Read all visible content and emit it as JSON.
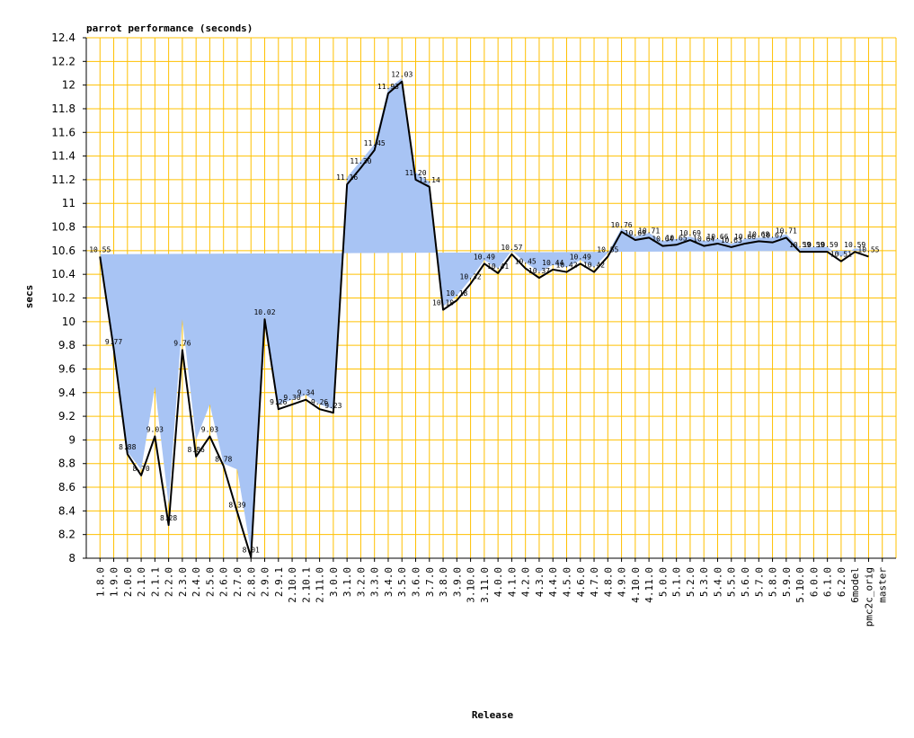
{
  "chart_data": {
    "type": "line",
    "title": "parrot performance (seconds)",
    "xlabel": "Release",
    "ylabel": "secs",
    "ylim": [
      8,
      12.4
    ],
    "yticks": [
      "8",
      "8.2",
      "8.4",
      "8.6",
      "8.8",
      "9",
      "9.2",
      "9.4",
      "9.6",
      "9.8",
      "10",
      "10.2",
      "10.4",
      "10.6",
      "10.8",
      "11",
      "11.2",
      "11.4",
      "11.6",
      "11.8",
      "12",
      "12.2",
      "12.4"
    ],
    "grid": true,
    "colors": {
      "grid": "#ffc000",
      "line": "#000000",
      "band": "#a8c4f4"
    },
    "categories": [
      "1.8.0",
      "1.9.0",
      "2.0.0",
      "2.1.0",
      "2.1.1",
      "2.2.0",
      "2.3.0",
      "2.4.0",
      "2.5.0",
      "2.6.0",
      "2.7.0",
      "2.8.0",
      "2.9.0",
      "2.9.1",
      "2.10.0",
      "2.10.1",
      "2.11.0",
      "3.0.0",
      "3.1.0",
      "3.2.0",
      "3.3.0",
      "3.4.0",
      "3.5.0",
      "3.6.0",
      "3.7.0",
      "3.8.0",
      "3.9.0",
      "3.10.0",
      "3.11.0",
      "4.0.0",
      "4.1.0",
      "4.2.0",
      "4.3.0",
      "4.4.0",
      "4.5.0",
      "4.6.0",
      "4.7.0",
      "4.8.0",
      "4.9.0",
      "4.10.0",
      "4.11.0",
      "5.0.0",
      "5.1.0",
      "5.2.0",
      "5.3.0",
      "5.4.0",
      "5.5.0",
      "5.6.0",
      "5.7.0",
      "5.8.0",
      "5.9.0",
      "5.10.0",
      "6.0.0",
      "6.1.0",
      "6.2.0",
      "6model",
      "pmc2c_orig",
      "master"
    ],
    "values": [
      10.55,
      9.77,
      8.88,
      8.7,
      9.03,
      8.28,
      9.76,
      8.86,
      9.03,
      8.78,
      8.39,
      8.01,
      10.02,
      9.26,
      9.3,
      9.34,
      9.26,
      9.23,
      11.16,
      11.3,
      11.45,
      11.93,
      12.03,
      11.2,
      11.14,
      10.1,
      10.18,
      10.32,
      10.49,
      10.41,
      10.57,
      10.45,
      10.37,
      10.44,
      10.42,
      10.49,
      10.42,
      10.55,
      10.76,
      10.69,
      10.71,
      10.64,
      10.65,
      10.69,
      10.64,
      10.66,
      10.63,
      10.66,
      10.68,
      10.67,
      10.71,
      10.59,
      10.59,
      10.59,
      10.51,
      10.59,
      10.55
    ],
    "labels": [
      "10.55",
      "9.77",
      "8.88",
      "8.70",
      "9.03",
      "8.28",
      "9.76",
      "8.86",
      "9.03",
      "8.78",
      "8.39",
      "8.01",
      "10.02",
      "9.26",
      "9.30",
      "9.34",
      "9.26",
      "9.23",
      "11.16",
      "11.30",
      "11.45",
      "11.93",
      "12.03",
      "11.20",
      "11.14",
      "10.10",
      "10.18",
      "10.32",
      "10.49",
      "10.41",
      "10.57",
      "10.45",
      "10.37",
      "10.44",
      "10.42",
      "10.49",
      "10.42",
      "10.55",
      "10.76",
      "10.69",
      "10.71",
      "10.64",
      "10.65",
      "10.69",
      "10.64",
      "10.66",
      "10.63",
      "10.66",
      "10.68",
      "10.67",
      "10.71",
      "10.59",
      "10.59",
      "10.59",
      "10.51",
      "10.59",
      "10.55"
    ],
    "band_low": [
      10.55,
      9.77,
      8.85,
      8.68,
      8.65,
      8.25,
      9.6,
      8.8,
      8.8,
      8.74,
      8.1,
      7.98,
      10.02,
      9.24,
      9.28,
      9.32,
      9.22,
      9.2,
      11.0,
      11.22,
      11.4,
      11.9,
      12.0,
      11.1,
      11.12,
      10.08,
      10.16,
      10.28,
      10.46,
      10.38,
      10.52,
      10.4,
      10.33,
      10.4,
      10.4,
      10.45,
      10.4,
      10.52,
      10.73,
      10.64,
      10.66,
      10.6,
      10.62,
      10.65,
      10.6,
      10.63,
      10.6,
      10.62,
      10.64,
      10.63,
      10.66,
      10.55,
      10.56,
      10.56,
      10.49,
      10.55,
      10.52
    ],
    "band_high": [
      10.57,
      9.8,
      8.9,
      8.75,
      9.45,
      8.45,
      10.02,
      9.0,
      9.3,
      8.8,
      8.75,
      8.05,
      10.04,
      9.3,
      9.34,
      9.38,
      9.3,
      9.26,
      11.22,
      11.36,
      11.5,
      11.97,
      12.06,
      11.26,
      11.18,
      10.13,
      10.22,
      10.36,
      10.52,
      10.45,
      10.6,
      10.5,
      10.42,
      10.48,
      10.46,
      10.52,
      10.46,
      10.58,
      10.79,
      10.72,
      10.75,
      10.68,
      10.7,
      10.72,
      10.68,
      10.7,
      10.66,
      10.7,
      10.71,
      10.71,
      10.74,
      10.62,
      10.63,
      10.63,
      10.55,
      10.62,
      10.6
    ]
  }
}
